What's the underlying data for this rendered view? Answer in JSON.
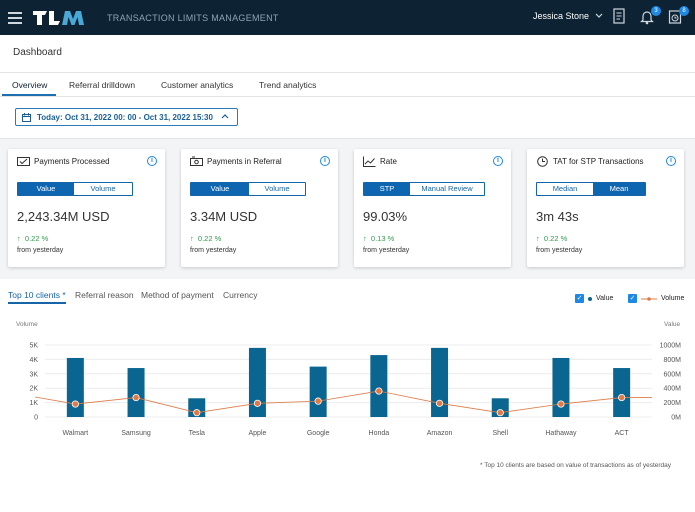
{
  "header": {
    "app_name": "TRANSACTION LIMITS MANAGEMENT",
    "logo_text": "TLM",
    "user_name": "Jessica Stone",
    "notification_count": "3",
    "tasks_count": "8"
  },
  "page": {
    "title": "Dashboard"
  },
  "tabs": [
    {
      "label": "Overview",
      "active": true
    },
    {
      "label": "Referral drilldown"
    },
    {
      "label": "Customer analytics"
    },
    {
      "label": "Trend analytics"
    }
  ],
  "date_filter": {
    "label": "Today: Oct 31, 2022 00: 00 - Oct 31, 2022 15:30"
  },
  "cards": [
    {
      "title": "Payments Processed",
      "toggle": [
        "Value",
        "Volume"
      ],
      "selected": 0,
      "value": "2,243.34M USD",
      "delta": "0.22 %",
      "sub": "from yesterday",
      "icon": "payments-icon"
    },
    {
      "title": "Payments in Referral",
      "toggle": [
        "Value",
        "Volume"
      ],
      "selected": 0,
      "value": "3.34M USD",
      "delta": "0.22 %",
      "sub": "from yesterday",
      "icon": "referral-icon"
    },
    {
      "title": "Rate",
      "toggle": [
        "STP",
        "Manual Review"
      ],
      "selected": 0,
      "value": "99.03%",
      "delta": "0.13 %",
      "sub": "from yesterday",
      "icon": "chart-line-icon"
    },
    {
      "title": "TAT for STP Transactions",
      "toggle": [
        "Median",
        "Mean"
      ],
      "selected": 1,
      "value": "3m 43s",
      "delta": "0.22 %",
      "sub": "from yesterday",
      "icon": "clock-icon"
    }
  ],
  "chart_tabs": [
    {
      "label": "Top 10 clients *",
      "active": true
    },
    {
      "label": "Referral reason"
    },
    {
      "label": "Method of payment"
    },
    {
      "label": "Currency"
    }
  ],
  "legend": {
    "value_label": "Value",
    "volume_label": "Volume"
  },
  "colors": {
    "bar": "#0a6691",
    "line": "#e07a45",
    "accent": "#1e88e5",
    "header_bg": "#0d2233",
    "positive": "#2e9b4a"
  },
  "chart_data": {
    "type": "bar",
    "categories": [
      "Walmart",
      "Samsung",
      "Tesla",
      "Apple",
      "Google",
      "Honda",
      "Amazon",
      "Shell",
      "Hathaway",
      "ACT"
    ],
    "series": [
      {
        "name": "Value",
        "type": "bar",
        "axis": "left",
        "values": [
          4100,
          3400,
          1300,
          4800,
          3500,
          4300,
          4800,
          1300,
          4100,
          3400
        ]
      },
      {
        "name": "Volume",
        "type": "line",
        "axis": "right",
        "values": [
          180000000,
          270000000,
          60000000,
          190000000,
          220000000,
          360000000,
          190000000,
          60000000,
          180000000,
          270000000
        ]
      }
    ],
    "ylabel": "Volume",
    "ylabel_right": "Value",
    "ylim": [
      0,
      5000
    ],
    "yticks": [
      "0",
      "1K",
      "2K",
      "3K",
      "4K",
      "5K"
    ],
    "ylim_right": [
      0,
      1000000000
    ],
    "yticks_right": [
      "0M",
      "200M",
      "400M",
      "600M",
      "800M",
      "1000M"
    ],
    "grid": true
  },
  "footnote": "* Top 10 clients are based on value of transactions as of yesterday"
}
